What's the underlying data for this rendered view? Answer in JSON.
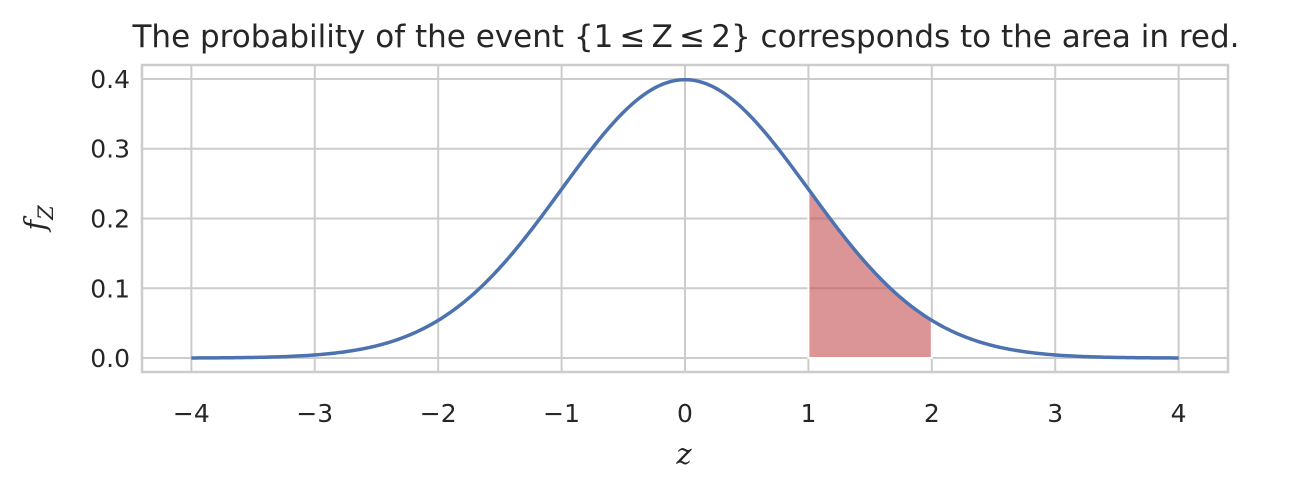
{
  "chart_data": {
    "type": "line",
    "title": "The probability of the event {1 ≤ Z ≤ 2} corresponds to the area in red.",
    "xlabel": "z",
    "ylabel": "f",
    "ylabel_sub": "Z",
    "xlim": [
      -4.4,
      4.4
    ],
    "ylim": [
      -0.02,
      0.42
    ],
    "xticks": [
      -4,
      -3,
      -2,
      -1,
      0,
      1,
      2,
      3,
      4
    ],
    "xtick_labels": [
      "−4",
      "−3",
      "−2",
      "−1",
      "0",
      "1",
      "2",
      "3",
      "4"
    ],
    "yticks": [
      0.0,
      0.1,
      0.2,
      0.3,
      0.4
    ],
    "ytick_labels": [
      "0.0",
      "0.1",
      "0.2",
      "0.3",
      "0.4"
    ],
    "grid": true,
    "series": [
      {
        "distribution": "standard normal pdf",
        "x_range": [
          -4,
          4
        ],
        "color": "#4c72b0"
      }
    ],
    "shaded_region": {
      "x_from": 1,
      "x_to": 2,
      "color": "#c44e52"
    }
  }
}
